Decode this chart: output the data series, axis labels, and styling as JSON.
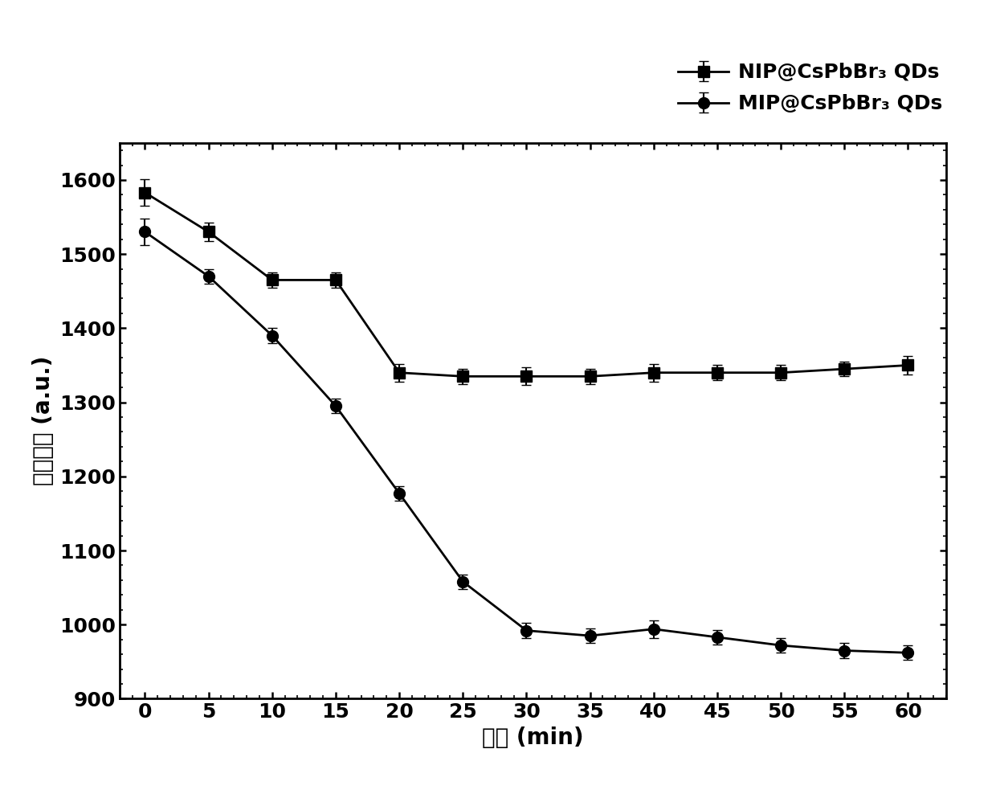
{
  "x": [
    0,
    5,
    10,
    15,
    20,
    25,
    30,
    35,
    40,
    45,
    50,
    55,
    60
  ],
  "nip_y": [
    1583,
    1530,
    1465,
    1465,
    1340,
    1335,
    1335,
    1335,
    1340,
    1340,
    1340,
    1345,
    1350
  ],
  "nip_yerr": [
    18,
    12,
    10,
    10,
    12,
    10,
    12,
    10,
    12,
    10,
    10,
    10,
    12
  ],
  "mip_y": [
    1530,
    1470,
    1390,
    1295,
    1177,
    1058,
    992,
    985,
    994,
    983,
    972,
    965,
    962
  ],
  "mip_yerr": [
    18,
    10,
    10,
    10,
    10,
    10,
    10,
    10,
    12,
    10,
    10,
    10,
    10
  ],
  "xlabel": "时间 (min)",
  "ylabel": "荧光强度 (a.u.)",
  "ylim": [
    900,
    1650
  ],
  "xlim": [
    -2,
    63
  ],
  "yticks": [
    900,
    1000,
    1100,
    1200,
    1300,
    1400,
    1500,
    1600
  ],
  "xticks": [
    0,
    5,
    10,
    15,
    20,
    25,
    30,
    35,
    40,
    45,
    50,
    55,
    60
  ],
  "nip_label": "NIP@CsPbBr₃ QDs",
  "mip_label": "MIP@CsPbBr₃ QDs",
  "line_color": "#000000",
  "bg_color": "#ffffff",
  "linewidth": 2.0,
  "markersize_square": 10,
  "markersize_circle": 10,
  "capsize": 4,
  "elinewidth": 1.5,
  "legend_fontsize": 18,
  "axis_fontsize": 20,
  "tick_fontsize": 18
}
